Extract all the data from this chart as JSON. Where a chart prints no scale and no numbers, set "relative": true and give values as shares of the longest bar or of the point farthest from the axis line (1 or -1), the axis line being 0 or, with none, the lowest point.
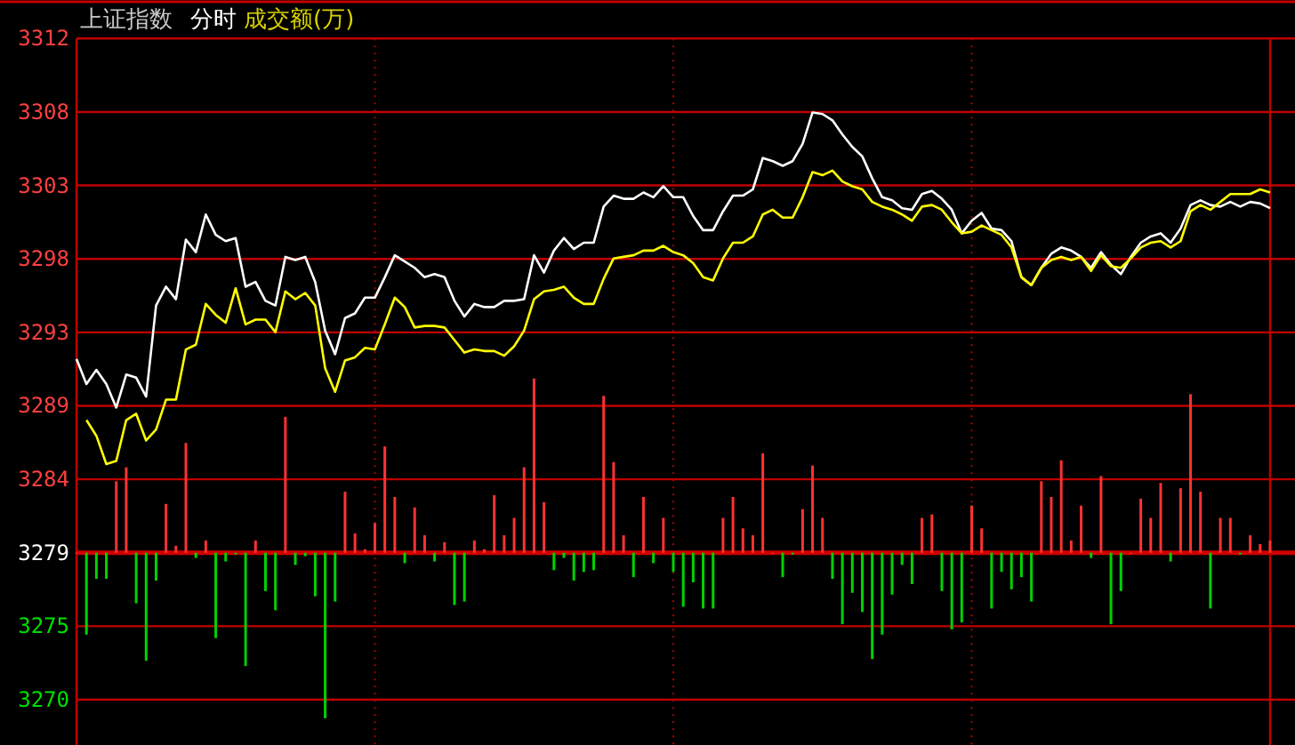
{
  "chart_data": [
    {
      "type": "line",
      "title": "上证指数",
      "subtitle": "分时",
      "annotations": [
        "成交额(万)"
      ],
      "categories": [
        null,
        null,
        null,
        null,
        null,
        null,
        null,
        null,
        null,
        null,
        null,
        null,
        null,
        null,
        null,
        null,
        null,
        null,
        null,
        null,
        null,
        null,
        null,
        null,
        null,
        null,
        null,
        null,
        null,
        null,
        null,
        null,
        null,
        null,
        null,
        null,
        null,
        null,
        null,
        null,
        null,
        null,
        null,
        null,
        null,
        null,
        null,
        null,
        null,
        null,
        null,
        null,
        null,
        null,
        null,
        null,
        null,
        null,
        null,
        null,
        null,
        null,
        null,
        null,
        null,
        null,
        null,
        null,
        null,
        null,
        null,
        null,
        null,
        null,
        null,
        null,
        null,
        null,
        null,
        null,
        null,
        null,
        null,
        null,
        null,
        null,
        null,
        null,
        null,
        null,
        null,
        null,
        null,
        null,
        null,
        null,
        null,
        null,
        null,
        null,
        null,
        null,
        null,
        null,
        null,
        null,
        null,
        null,
        null,
        null,
        null,
        null,
        null,
        null,
        null,
        null,
        null,
        null,
        null,
        null,
        null
      ],
      "ylim": [
        3267.2,
        3314.55
      ],
      "yticks": [
        {
          "value": 3312.21,
          "label": "3312"
        },
        {
          "value": 3307.53,
          "label": "3308"
        },
        {
          "value": 3302.85,
          "label": "3303"
        },
        {
          "value": 3298.17,
          "label": "3298"
        },
        {
          "value": 3293.49,
          "label": "3293"
        },
        {
          "value": 3288.81,
          "label": "3289"
        },
        {
          "value": 3284.13,
          "label": "3284"
        },
        {
          "value": 3279.45,
          "label": "3279"
        },
        {
          "value": 3274.77,
          "label": "3275"
        },
        {
          "value": 3270.09,
          "label": "3270"
        }
      ],
      "grid": true,
      "tick_labels": "y",
      "ref_lines": [
        {
          "axis": "y",
          "value": 3279.45,
          "color": "#d00000"
        }
      ],
      "series": [
        {
          "color": "#ffffff",
          "values": [
            3291.8,
            3290.2,
            3291.1,
            3290.2,
            3288.7,
            3290.8,
            3290.6,
            3289.4,
            3295.2,
            3296.4,
            3295.6,
            3299.4,
            3298.6,
            3301.0,
            3299.7,
            3299.3,
            3299.5,
            3296.4,
            3296.7,
            3295.5,
            3295.2,
            3298.3,
            3298.1,
            3298.3,
            3296.7,
            3293.6,
            3292.1,
            3294.4,
            3294.7,
            3295.7,
            3295.7,
            3297.0,
            3298.4,
            3298.0,
            3297.6,
            3297.0,
            3297.2,
            3297.0,
            3295.5,
            3294.5,
            3295.3,
            3295.1,
            3295.1,
            3295.5,
            3295.5,
            3295.6,
            3298.4,
            3297.3,
            3298.7,
            3299.5,
            3298.8,
            3299.2,
            3299.2,
            3301.5,
            3302.2,
            3302.0,
            3302.0,
            3302.4,
            3302.1,
            3302.8,
            3302.1,
            3302.1,
            3300.9,
            3300.0,
            3300.0,
            3301.2,
            3302.2,
            3302.2,
            3302.6,
            3304.6,
            3304.4,
            3304.1,
            3304.4,
            3305.5,
            3307.5,
            3307.4,
            3307.0,
            3306.1,
            3305.3,
            3304.7,
            3303.3,
            3302.1,
            3301.9,
            3301.4,
            3301.3,
            3302.3,
            3302.5,
            3302.0,
            3301.3,
            3299.8,
            3300.6,
            3301.1,
            3300.1,
            3300.0,
            3299.3,
            3297.0,
            3296.5,
            3297.6,
            3298.5,
            3298.9,
            3298.7,
            3298.3,
            3297.6,
            3298.6,
            3297.8,
            3297.2,
            3298.3,
            3299.2,
            3299.6,
            3299.8,
            3299.2,
            3300.1,
            3301.6,
            3301.9,
            3301.6,
            3301.5,
            3301.8,
            3301.5,
            3301.8,
            3301.7,
            3301.4
          ]
        },
        {
          "color": "#ffff00",
          "values": [
            null,
            3287.9,
            3286.9,
            3285.1,
            3285.3,
            3287.9,
            3288.3,
            3286.6,
            3287.3,
            3289.2,
            3289.2,
            3292.4,
            3292.7,
            3295.3,
            3294.6,
            3294.1,
            3296.3,
            3294.0,
            3294.3,
            3294.3,
            3293.5,
            3296.1,
            3295.6,
            3296.0,
            3295.2,
            3291.2,
            3289.7,
            3291.7,
            3291.9,
            3292.5,
            3292.4,
            3294.0,
            3295.7,
            3295.1,
            3293.8,
            3293.9,
            3293.9,
            3293.8,
            3293.0,
            3292.2,
            3292.4,
            3292.3,
            3292.3,
            3292.0,
            3292.6,
            3293.6,
            3295.6,
            3296.1,
            3296.2,
            3296.4,
            3295.7,
            3295.3,
            3295.3,
            3296.9,
            3298.2,
            3298.3,
            3298.4,
            3298.7,
            3298.7,
            3299.0,
            3298.6,
            3298.4,
            3297.9,
            3297.0,
            3296.8,
            3298.2,
            3299.2,
            3299.2,
            3299.6,
            3301.0,
            3301.3,
            3300.8,
            3300.8,
            3302.1,
            3303.7,
            3303.5,
            3303.8,
            3303.1,
            3302.8,
            3302.6,
            3301.8,
            3301.5,
            3301.3,
            3301.0,
            3300.6,
            3301.5,
            3301.6,
            3301.3,
            3300.5,
            3299.8,
            3299.9,
            3300.3,
            3300.0,
            3299.7,
            3298.9,
            3297.0,
            3296.5,
            3297.6,
            3298.1,
            3298.3,
            3298.1,
            3298.3,
            3297.4,
            3298.4,
            3297.7,
            3297.6,
            3298.2,
            3298.9,
            3299.2,
            3299.3,
            3298.9,
            3299.3,
            3301.2,
            3301.6,
            3301.3,
            3301.8,
            3302.3,
            3302.3,
            3302.3,
            3302.6,
            3302.4
          ]
        }
      ]
    },
    {
      "type": "bar",
      "relative": true,
      "categories": [
        null,
        null,
        null,
        null,
        null,
        null,
        null,
        null,
        null,
        null,
        null,
        null,
        null,
        null,
        null,
        null,
        null,
        null,
        null,
        null,
        null,
        null,
        null,
        null,
        null,
        null,
        null,
        null,
        null,
        null,
        null,
        null,
        null,
        null,
        null,
        null,
        null,
        null,
        null,
        null,
        null,
        null,
        null,
        null,
        null,
        null,
        null,
        null,
        null,
        null,
        null,
        null,
        null,
        null,
        null,
        null,
        null,
        null,
        null,
        null,
        null,
        null,
        null,
        null,
        null,
        null,
        null,
        null,
        null,
        null,
        null,
        null,
        null,
        null,
        null,
        null,
        null,
        null,
        null,
        null,
        null,
        null,
        null,
        null,
        null,
        null,
        null,
        null,
        null,
        null,
        null,
        null,
        null,
        null,
        null,
        null,
        null,
        null,
        null,
        null,
        null,
        null,
        null,
        null,
        null,
        null,
        null,
        null,
        null,
        null,
        null,
        null,
        null,
        null,
        null,
        null,
        null,
        null,
        null,
        null,
        null
      ],
      "values": [
        0,
        -0.47,
        -0.15,
        -0.15,
        0.41,
        0.49,
        -0.29,
        -0.62,
        -0.16,
        0.28,
        0.04,
        0.63,
        -0.03,
        0.07,
        -0.49,
        -0.05,
        -0.01,
        -0.65,
        0.07,
        -0.22,
        -0.33,
        0.78,
        -0.07,
        -0.02,
        -0.25,
        -0.95,
        -0.28,
        0.35,
        0.11,
        0.02,
        0.17,
        0.61,
        0.32,
        -0.06,
        0.26,
        0.1,
        -0.05,
        0.06,
        -0.3,
        -0.28,
        0.07,
        0.02,
        0.33,
        0.1,
        0.2,
        0.49,
        1,
        0.29,
        -0.1,
        -0.03,
        -0.16,
        -0.11,
        -0.1,
        0.9,
        0.52,
        0.1,
        -0.14,
        0.32,
        -0.06,
        0.2,
        -0.11,
        -0.31,
        -0.17,
        -0.32,
        -0.32,
        0.2,
        0.32,
        0.14,
        0.1,
        0.57,
        0,
        -0.14,
        -0.01,
        0.25,
        0.5,
        0.2,
        -0.15,
        -0.41,
        -0.23,
        -0.34,
        -0.61,
        -0.47,
        -0.24,
        -0.07,
        -0.18,
        0.2,
        0.22,
        -0.22,
        -0.44,
        -0.4,
        0.27,
        0.14,
        -0.32,
        -0.11,
        -0.21,
        -0.14,
        -0.28,
        0.41,
        0.32,
        0.53,
        0.07,
        0.27,
        -0.03,
        0.44,
        -0.41,
        -0.22,
        0,
        0.31,
        0.2,
        0.4,
        -0.05,
        0.37,
        0.91,
        0.35,
        -0.32,
        0.2,
        0.2,
        -0.01,
        0.1,
        0.05,
        0.07
      ],
      "colors": [
        "#ff3232",
        "#00d200",
        "#00d200",
        "#00d200",
        "#ff3232",
        "#ff3232",
        "#00d200",
        "#00d200",
        "#00d200",
        "#ff3232",
        "#ff3232",
        "#ff3232",
        "#00d200",
        "#ff3232",
        "#00d200",
        "#00d200",
        "#00d200",
        "#00d200",
        "#ff3232",
        "#00d200",
        "#00d200",
        "#ff3232",
        "#00d200",
        "#00d200",
        "#00d200",
        "#00d200",
        "#00d200",
        "#ff3232",
        "#ff3232",
        "#ff3232",
        "#ff3232",
        "#ff3232",
        "#ff3232",
        "#00d200",
        "#ff3232",
        "#ff3232",
        "#00d200",
        "#ff3232",
        "#00d200",
        "#00d200",
        "#ff3232",
        "#ff3232",
        "#ff3232",
        "#ff3232",
        "#ff3232",
        "#ff3232",
        "#ff3232",
        "#ff3232",
        "#00d200",
        "#00d200",
        "#00d200",
        "#00d200",
        "#00d200",
        "#ff3232",
        "#ff3232",
        "#ff3232",
        "#00d200",
        "#ff3232",
        "#00d200",
        "#ff3232",
        "#00d200",
        "#00d200",
        "#00d200",
        "#00d200",
        "#00d200",
        "#ff3232",
        "#ff3232",
        "#ff3232",
        "#ff3232",
        "#ff3232",
        "#ff3232",
        "#00d200",
        "#00d200",
        "#ff3232",
        "#ff3232",
        "#ff3232",
        "#00d200",
        "#00d200",
        "#00d200",
        "#00d200",
        "#00d200",
        "#00d200",
        "#00d200",
        "#00d200",
        "#00d200",
        "#ff3232",
        "#ff3232",
        "#00d200",
        "#00d200",
        "#00d200",
        "#ff3232",
        "#ff3232",
        "#00d200",
        "#00d200",
        "#00d200",
        "#00d200",
        "#00d200",
        "#ff3232",
        "#ff3232",
        "#ff3232",
        "#ff3232",
        "#ff3232",
        "#00d200",
        "#ff3232",
        "#00d200",
        "#00d200",
        "#ff3232",
        "#ff3232",
        "#ff3232",
        "#ff3232",
        "#00d200",
        "#ff3232",
        "#ff3232",
        "#ff3232",
        "#00d200",
        "#ff3232",
        "#ff3232",
        "#00d200",
        "#ff3232",
        "#ff3232",
        "#ff3232"
      ]
    }
  ]
}
